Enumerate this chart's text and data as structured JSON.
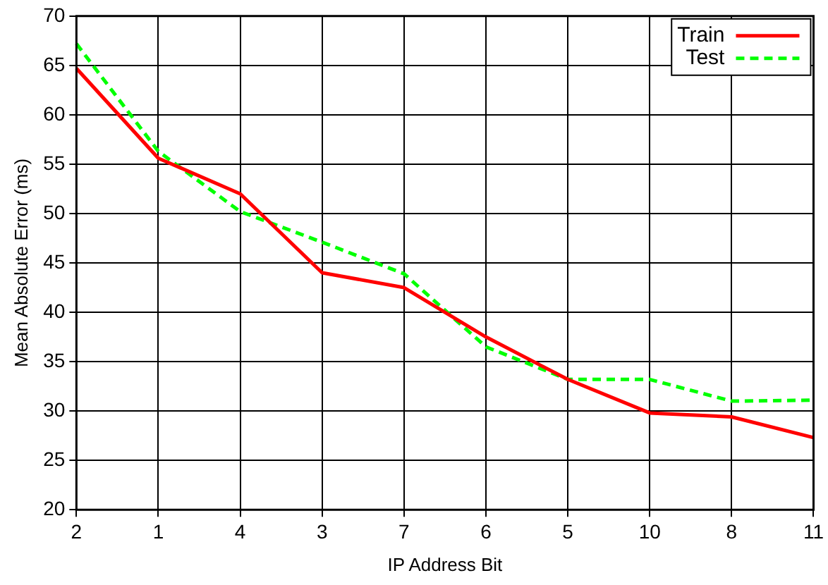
{
  "chart_data": {
    "type": "line",
    "xlabel": "IP Address Bit",
    "ylabel": "Mean Absolute Error (ms)",
    "categories": [
      "2",
      "1",
      "4",
      "3",
      "7",
      "6",
      "5",
      "10",
      "8",
      "11"
    ],
    "series": [
      {
        "name": "Train",
        "color": "#ff0000",
        "line_style": "solid",
        "values": [
          64.7,
          55.6,
          52.0,
          44.0,
          42.5,
          37.5,
          33.2,
          29.8,
          29.4,
          27.3
        ]
      },
      {
        "name": "Test",
        "color": "#00ff00",
        "line_style": "dashed",
        "values": [
          67.2,
          56.3,
          50.2,
          47.1,
          43.9,
          36.5,
          33.2,
          33.2,
          31.0,
          31.1
        ]
      }
    ],
    "ylim": [
      20,
      70
    ],
    "yticks": [
      20,
      25,
      30,
      35,
      40,
      45,
      50,
      55,
      60,
      65,
      70
    ],
    "grid": true,
    "legend": "top right",
    "marker": "none"
  }
}
